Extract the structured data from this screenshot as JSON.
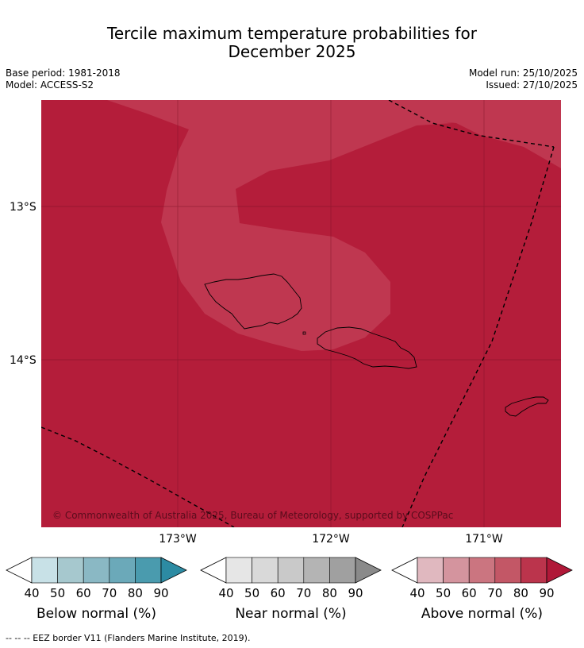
{
  "title_line1": "Tercile maximum temperature probabilities for",
  "title_line2": "December 2025",
  "base_period": "Base period: 1981-2018",
  "model": "Model: ACCESS-S2",
  "model_run": "Model run: 25/10/2025",
  "issued": "Issued: 27/10/2025",
  "copyright": "© Commonwealth of Australia 2025, Bureau of Meteorology, supported by COSPPac",
  "lat_labels": [
    "13°S",
    "14°S"
  ],
  "lon_labels": [
    "173°W",
    "172°W",
    "171°W"
  ],
  "fill_colors": {
    "above_80_90": "#b41d3a",
    "above_70_80": "#bf3750",
    "land_border": "#000000",
    "eez_border": "#000000"
  },
  "colorbars": [
    {
      "label": "Below normal (%)",
      "ticks": [
        "40",
        "50",
        "60",
        "70",
        "80",
        "90"
      ],
      "colors": [
        "#c8e1e7",
        "#a6c8ce",
        "#8ab8c4",
        "#6ba9b9",
        "#4a9bae",
        "#2c8ba3"
      ]
    },
    {
      "label": "Near normal (%)",
      "ticks": [
        "40",
        "50",
        "60",
        "70",
        "80",
        "90"
      ],
      "colors": [
        "#e6e6e6",
        "#d9d9d9",
        "#c9c9c9",
        "#b4b4b4",
        "#a0a0a0",
        "#8a8a8a"
      ]
    },
    {
      "label": "Above normal (%)",
      "ticks": [
        "40",
        "50",
        "60",
        "70",
        "80",
        "90"
      ],
      "colors": [
        "#e0b8bf",
        "#d4949e",
        "#cb7580",
        "#c35766",
        "#bb344c",
        "#b01838"
      ]
    }
  ],
  "footnote": "--  --  -- EEZ border V11 (Flanders Marine Institute, 2019)."
}
